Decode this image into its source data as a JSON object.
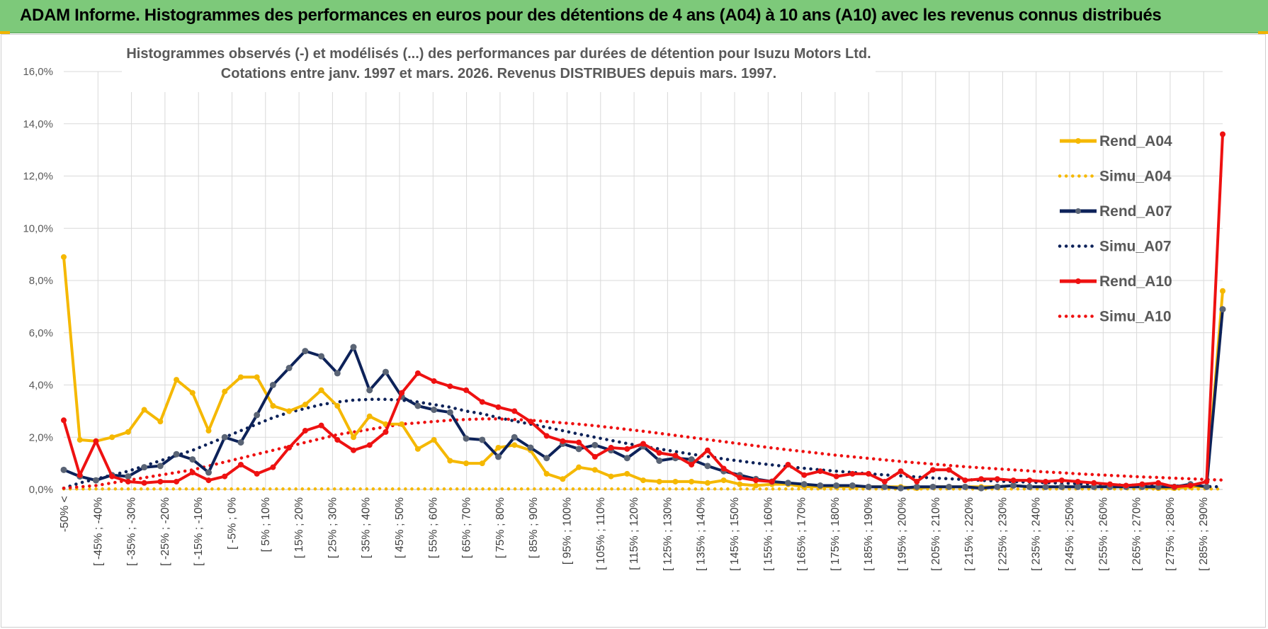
{
  "header": {
    "title": "ADAM Informe. Histogrammes des performances en euros pour des détentions de 4 ans (A04) à 10 ans (A10) avec les revenus connus distribués"
  },
  "chart_data": {
    "type": "line",
    "title_line1": "Histogrammes observés (-) et modélisés (...) des performances par durées de détention pour Isuzu Motors Ltd.",
    "title_line2": "Cotations entre janv. 1997 et mars. 2026. Revenus DISTRIBUES depuis mars. 1997.",
    "ylim": [
      0,
      16
    ],
    "yticks": [
      "0,0%",
      "2,0%",
      "4,0%",
      "6,0%",
      "8,0%",
      "10,0%",
      "12,0%",
      "14,0%",
      "16,0%"
    ],
    "x_labels": [
      "-50% <",
      "[ -45% ; -40%",
      "[ -35% ; -30%",
      "[ -25% ; -20%",
      "[ -15% ; -10%",
      "[ -5% ; 0%",
      "[ 5% ; 10%",
      "[ 15% ; 20%",
      "[ 25% ; 30%",
      "[ 35% ; 40%",
      "[ 45% ; 50%",
      "[ 55% ; 60%",
      "[ 65% ; 70%",
      "[ 75% ; 80%",
      "[ 85% ; 90%",
      "[ 95% ; 100%",
      "[ 105% ; 110%",
      "[ 115% ; 120%",
      "[ 125% ; 130%",
      "[ 135% ; 140%",
      "[ 145% ; 150%",
      "[ 155% ; 160%",
      "[ 165% ; 170%",
      "[ 175% ; 180%",
      "[ 185% ; 190%",
      "[ 195% ; 200%",
      "[ 205% ; 210%",
      "[ 215% ; 220%",
      "[ 225% ; 230%",
      "[ 235% ; 240%",
      "[ 245% ; 250%",
      "[ 255% ; 260%",
      "[ 265% ; 270%",
      "[ 275% ; 280%",
      "[ 285% ; 290%"
    ],
    "legend_position": "right",
    "series": [
      {
        "name": "Rend_A04",
        "color": "#f5b800",
        "style": "solid",
        "markers": true,
        "values": [
          8.9,
          1.9,
          1.85,
          2.0,
          2.2,
          3.05,
          2.6,
          4.2,
          3.7,
          2.25,
          3.75,
          4.3,
          4.3,
          3.2,
          3.0,
          3.25,
          3.8,
          3.2,
          2.0,
          2.8,
          2.5,
          2.5,
          1.55,
          1.9,
          1.1,
          1.0,
          1.0,
          1.6,
          1.7,
          1.5,
          0.6,
          0.4,
          0.85,
          0.75,
          0.5,
          0.6,
          0.35,
          0.3,
          0.3,
          0.3,
          0.25,
          0.35,
          0.2,
          0.15,
          0.2,
          0.2,
          0.1,
          0.1,
          0.1,
          0.1,
          0.1,
          0.1,
          0.1,
          0.05,
          0.1,
          0.1,
          0.1,
          0.1,
          0.1,
          0.15,
          0.1,
          0.1,
          0.1,
          0.1,
          0.1,
          0.1,
          0.1,
          0.1,
          0.05,
          0.05,
          0.1,
          0.1,
          7.6
        ]
      },
      {
        "name": "Simu_A04",
        "color": "#f5b800",
        "style": "dotted",
        "markers": false,
        "values": [
          0.02,
          0.02,
          0.02,
          0.02,
          0.02,
          0.02,
          0.02,
          0.02,
          0.02,
          0.02,
          0.02,
          0.02,
          0.02,
          0.02,
          0.02,
          0.02,
          0.02,
          0.02,
          0.02,
          0.02,
          0.02,
          0.02,
          0.02,
          0.02,
          0.02,
          0.02,
          0.02,
          0.02,
          0.02,
          0.02,
          0.02,
          0.02,
          0.02,
          0.02,
          0.02,
          0.02,
          0.02,
          0.02,
          0.02,
          0.02,
          0.02,
          0.02,
          0.02,
          0.02,
          0.02,
          0.02,
          0.02,
          0.02,
          0.02,
          0.02,
          0.02,
          0.02,
          0.02,
          0.02,
          0.02,
          0.02,
          0.02,
          0.02,
          0.02,
          0.02,
          0.02,
          0.02,
          0.02,
          0.02,
          0.02,
          0.02,
          0.02,
          0.02,
          0.02,
          0.02,
          0.02,
          0.02,
          0.02
        ]
      },
      {
        "name": "Rend_A07",
        "color": "#0d2259",
        "style": "solid",
        "markers": true,
        "values": [
          0.75,
          0.5,
          0.35,
          0.55,
          0.5,
          0.85,
          0.9,
          1.35,
          1.15,
          0.65,
          2.0,
          1.8,
          2.85,
          4.0,
          4.65,
          5.3,
          5.1,
          4.45,
          5.45,
          3.8,
          4.5,
          3.55,
          3.2,
          3.05,
          2.95,
          1.95,
          1.9,
          1.25,
          2.0,
          1.6,
          1.2,
          1.75,
          1.55,
          1.7,
          1.5,
          1.2,
          1.65,
          1.1,
          1.2,
          1.15,
          0.9,
          0.7,
          0.55,
          0.4,
          0.3,
          0.25,
          0.2,
          0.15,
          0.15,
          0.15,
          0.1,
          0.1,
          0.05,
          0.1,
          0.1,
          0.1,
          0.1,
          0.05,
          0.1,
          0.15,
          0.1,
          0.1,
          0.1,
          0.1,
          0.1,
          0.1,
          0.1,
          0.1,
          0.1,
          0.1,
          0.2,
          0.1,
          6.9
        ]
      },
      {
        "name": "Simu_A07",
        "color": "#0d2259",
        "style": "dotted",
        "markers": false,
        "values": [
          0.05,
          0.25,
          0.4,
          0.55,
          0.7,
          0.9,
          1.1,
          1.3,
          1.5,
          1.75,
          2.0,
          2.25,
          2.5,
          2.75,
          2.95,
          3.1,
          3.25,
          3.35,
          3.42,
          3.45,
          3.45,
          3.42,
          3.35,
          3.25,
          3.15,
          3.0,
          2.9,
          2.75,
          2.62,
          2.5,
          2.38,
          2.25,
          2.12,
          2.0,
          1.88,
          1.76,
          1.65,
          1.55,
          1.45,
          1.35,
          1.26,
          1.17,
          1.09,
          1.01,
          0.94,
          0.87,
          0.81,
          0.75,
          0.7,
          0.65,
          0.6,
          0.56,
          0.52,
          0.48,
          0.44,
          0.41,
          0.38,
          0.35,
          0.32,
          0.3,
          0.28,
          0.26,
          0.24,
          0.22,
          0.2,
          0.18,
          0.17,
          0.15,
          0.14,
          0.13,
          0.12,
          0.11,
          0.1
        ]
      },
      {
        "name": "Rend_A10",
        "color": "#ee1111",
        "style": "solid",
        "markers": true,
        "values": [
          2.65,
          0.55,
          1.85,
          0.5,
          0.3,
          0.25,
          0.3,
          0.3,
          0.65,
          0.35,
          0.5,
          0.95,
          0.6,
          0.85,
          1.6,
          2.25,
          2.45,
          1.9,
          1.5,
          1.7,
          2.2,
          3.7,
          4.45,
          4.15,
          3.95,
          3.8,
          3.35,
          3.15,
          3.0,
          2.6,
          2.05,
          1.85,
          1.8,
          1.25,
          1.6,
          1.55,
          1.75,
          1.4,
          1.3,
          0.95,
          1.5,
          0.8,
          0.45,
          0.35,
          0.3,
          0.95,
          0.55,
          0.7,
          0.5,
          0.6,
          0.6,
          0.3,
          0.7,
          0.3,
          0.75,
          0.75,
          0.35,
          0.4,
          0.4,
          0.35,
          0.35,
          0.3,
          0.35,
          0.3,
          0.25,
          0.2,
          0.15,
          0.2,
          0.25,
          0.1,
          0.15,
          0.3,
          13.6
        ]
      },
      {
        "name": "Simu_A10",
        "color": "#ee1111",
        "style": "dotted",
        "markers": false,
        "values": [
          0.05,
          0.1,
          0.15,
          0.25,
          0.35,
          0.45,
          0.55,
          0.65,
          0.75,
          0.9,
          1.05,
          1.2,
          1.35,
          1.5,
          1.65,
          1.8,
          1.95,
          2.1,
          2.2,
          2.3,
          2.4,
          2.5,
          2.55,
          2.6,
          2.65,
          2.68,
          2.7,
          2.7,
          2.68,
          2.65,
          2.6,
          2.55,
          2.5,
          2.44,
          2.37,
          2.3,
          2.23,
          2.15,
          2.07,
          1.99,
          1.91,
          1.83,
          1.75,
          1.67,
          1.59,
          1.52,
          1.45,
          1.38,
          1.31,
          1.25,
          1.19,
          1.13,
          1.07,
          1.02,
          0.97,
          0.92,
          0.87,
          0.83,
          0.79,
          0.75,
          0.71,
          0.67,
          0.64,
          0.6,
          0.57,
          0.54,
          0.51,
          0.48,
          0.46,
          0.43,
          0.41,
          0.38,
          0.36
        ]
      }
    ]
  }
}
